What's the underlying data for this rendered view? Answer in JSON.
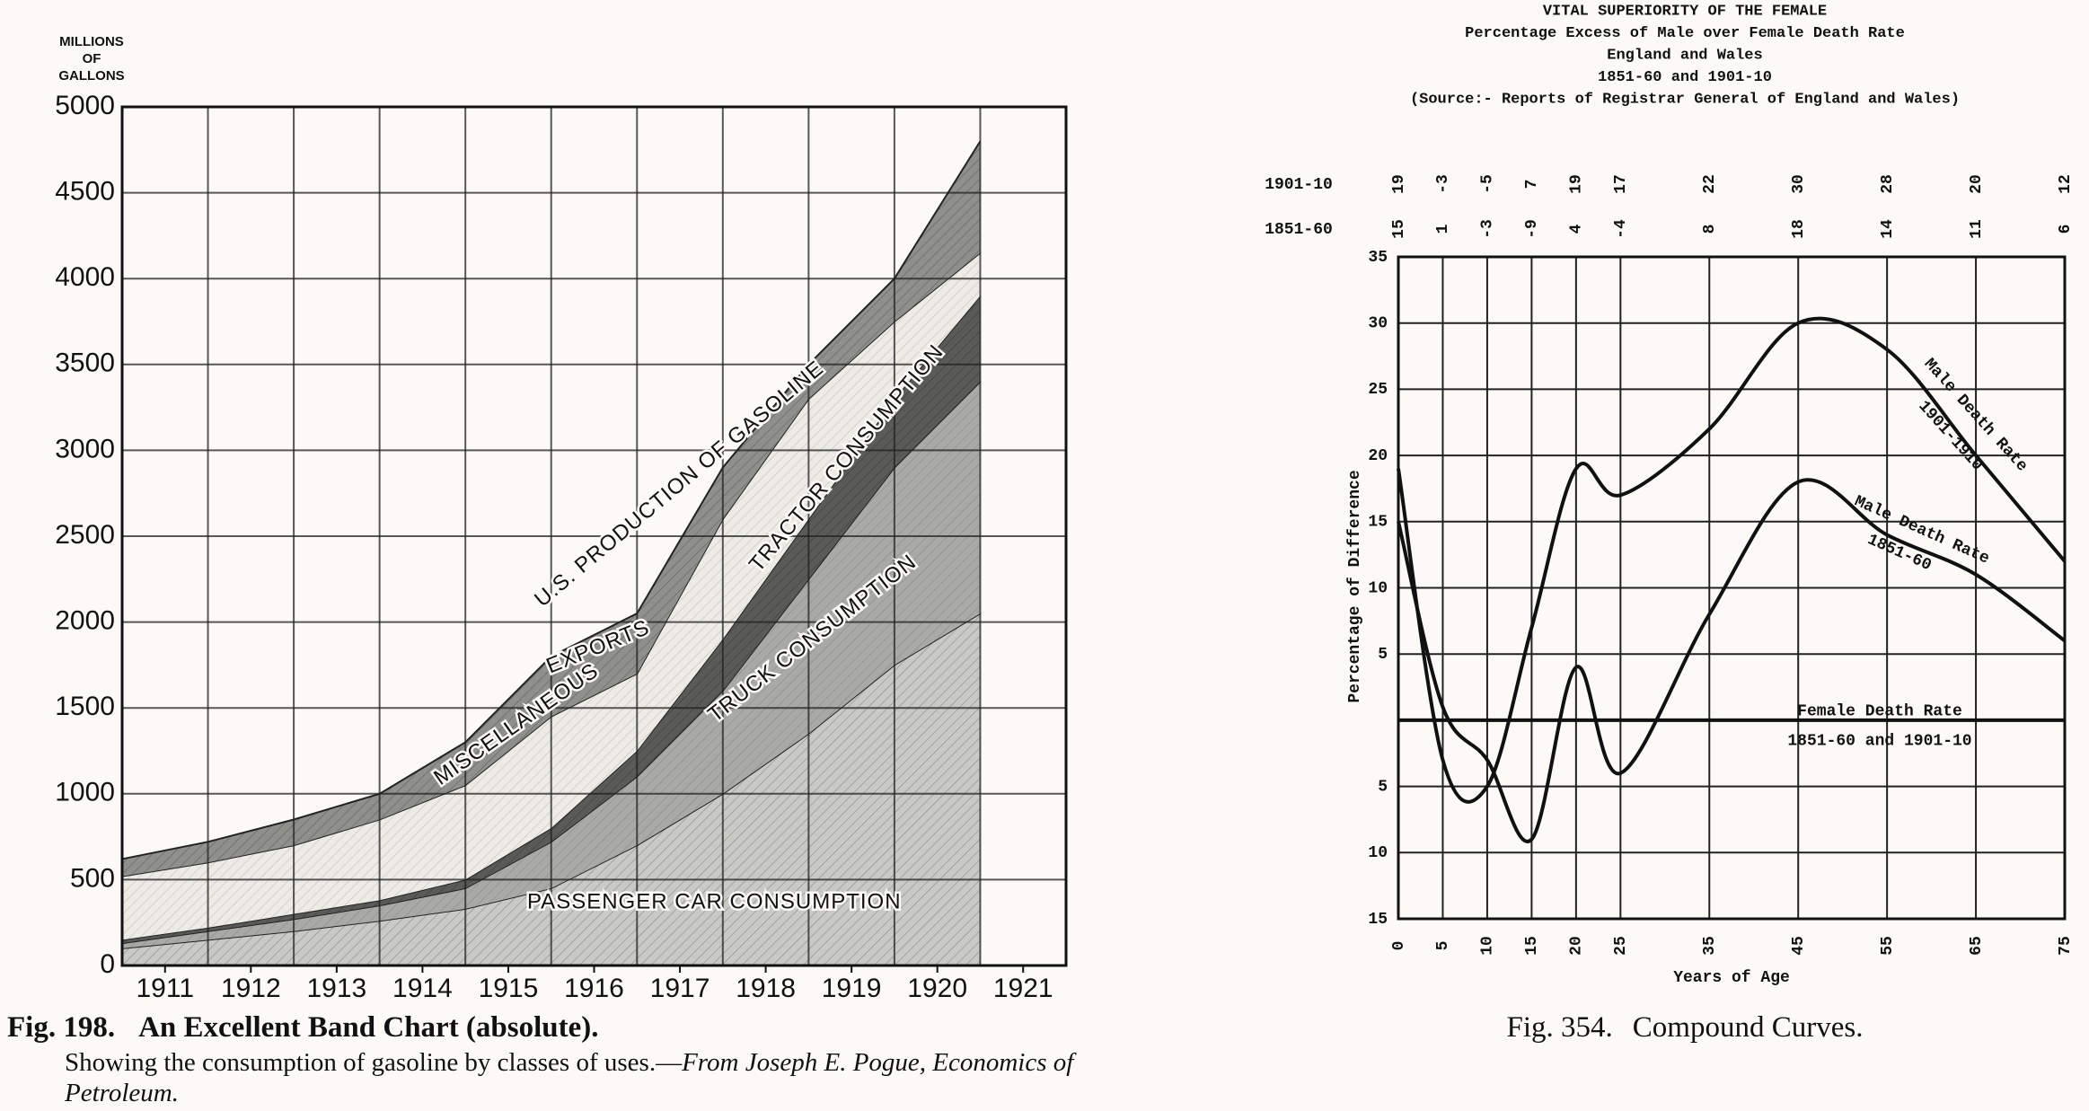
{
  "chart_data": [
    {
      "type": "area",
      "y_axis_label": [
        "MILLIONS",
        "OF",
        "GALLONS"
      ],
      "x": [
        1910.5,
        1911.5,
        1912.5,
        1913.5,
        1914.5,
        1915.5,
        1916.5,
        1917.5,
        1918.5,
        1919.5,
        1920.5
      ],
      "xlim": [
        1910.5,
        1921.5
      ],
      "xticks": [
        1911,
        1912,
        1913,
        1914,
        1915,
        1916,
        1917,
        1918,
        1919,
        1920,
        1921
      ],
      "ylim": [
        0,
        5000
      ],
      "yticks": [
        0,
        500,
        1000,
        1500,
        2000,
        2500,
        3000,
        3500,
        4000,
        4500,
        5000
      ],
      "grid": true,
      "stacked": true,
      "series": [
        {
          "name": "PASSENGER CAR CONSUMPTION",
          "color": "#c9c9c6",
          "values": [
            100,
            150,
            200,
            260,
            330,
            450,
            700,
            1000,
            1350,
            1750,
            2050
          ]
        },
        {
          "name": "TRUCK CONSUMPTION",
          "color": "#a9a9a5",
          "values": [
            30,
            50,
            70,
            90,
            120,
            270,
            400,
            600,
            900,
            1150,
            1350
          ]
        },
        {
          "name": "TRACTOR CONSUMPTION",
          "color": "#5a5a58",
          "values": [
            20,
            20,
            30,
            30,
            50,
            80,
            150,
            300,
            350,
            400,
            500
          ]
        },
        {
          "name": "MISCELLANEOUS",
          "color": "#ecebe6",
          "values": [
            370,
            380,
            400,
            470,
            550,
            650,
            450,
            700,
            700,
            450,
            250
          ]
        },
        {
          "name": "EXPORTS",
          "color": "#8f8f8b",
          "values": [
            100,
            120,
            150,
            150,
            250,
            350,
            350,
            300,
            200,
            250,
            650
          ]
        }
      ],
      "annotation": "U.S. PRODUCTION OF GASOLINE",
      "figure_number": "Fig. 198.",
      "caption": "An Excellent Band Chart (absolute).",
      "note": "Showing the consumption of gasoline by classes of uses.—",
      "source": "From Joseph E. Pogue, Economics of Petroleum."
    },
    {
      "type": "line",
      "title": [
        "VITAL SUPERIORITY OF THE FEMALE",
        "Percentage Excess of Male over Female Death Rate",
        "England and Wales",
        "1851-60 and 1901-10",
        "(Source:- Reports of Registrar General of England and Wales)"
      ],
      "x_axis_label": "Years of Age",
      "y_axis_label": "Percentage of Difference",
      "x": [
        0,
        5,
        10,
        15,
        20,
        25,
        35,
        45,
        55,
        65,
        75
      ],
      "xlim": [
        0,
        75
      ],
      "xticks": [
        0,
        5,
        10,
        15,
        20,
        25,
        35,
        45,
        55,
        65,
        75
      ],
      "ylim": [
        -15,
        35
      ],
      "yticks": [
        35,
        30,
        25,
        20,
        15,
        10,
        5,
        {
          "value": -5,
          "label": "5"
        },
        {
          "value": -10,
          "label": "10"
        },
        {
          "value": -15,
          "label": "15"
        }
      ],
      "grid": true,
      "series": [
        {
          "name": "1901-10",
          "color": "#111111",
          "values": [
            19,
            -3,
            -5,
            7,
            19,
            17,
            22,
            30,
            28,
            20,
            12
          ]
        },
        {
          "name": "1851-60",
          "color": "#111111",
          "values": [
            15,
            1,
            -3,
            -9,
            4,
            -4,
            8,
            18,
            14,
            11,
            6
          ]
        }
      ],
      "reference_line": {
        "value": 0,
        "label": "Female Death Rate",
        "sublabel": "1851-60 and 1901-10"
      },
      "curve_labels": [
        {
          "label": "Male Death Rate",
          "sublabel": "1901-1910"
        },
        {
          "label": "Male Death Rate",
          "sublabel": "1851-60"
        }
      ],
      "figure_number": "Fig. 354.",
      "caption": "Compound Curves."
    }
  ]
}
